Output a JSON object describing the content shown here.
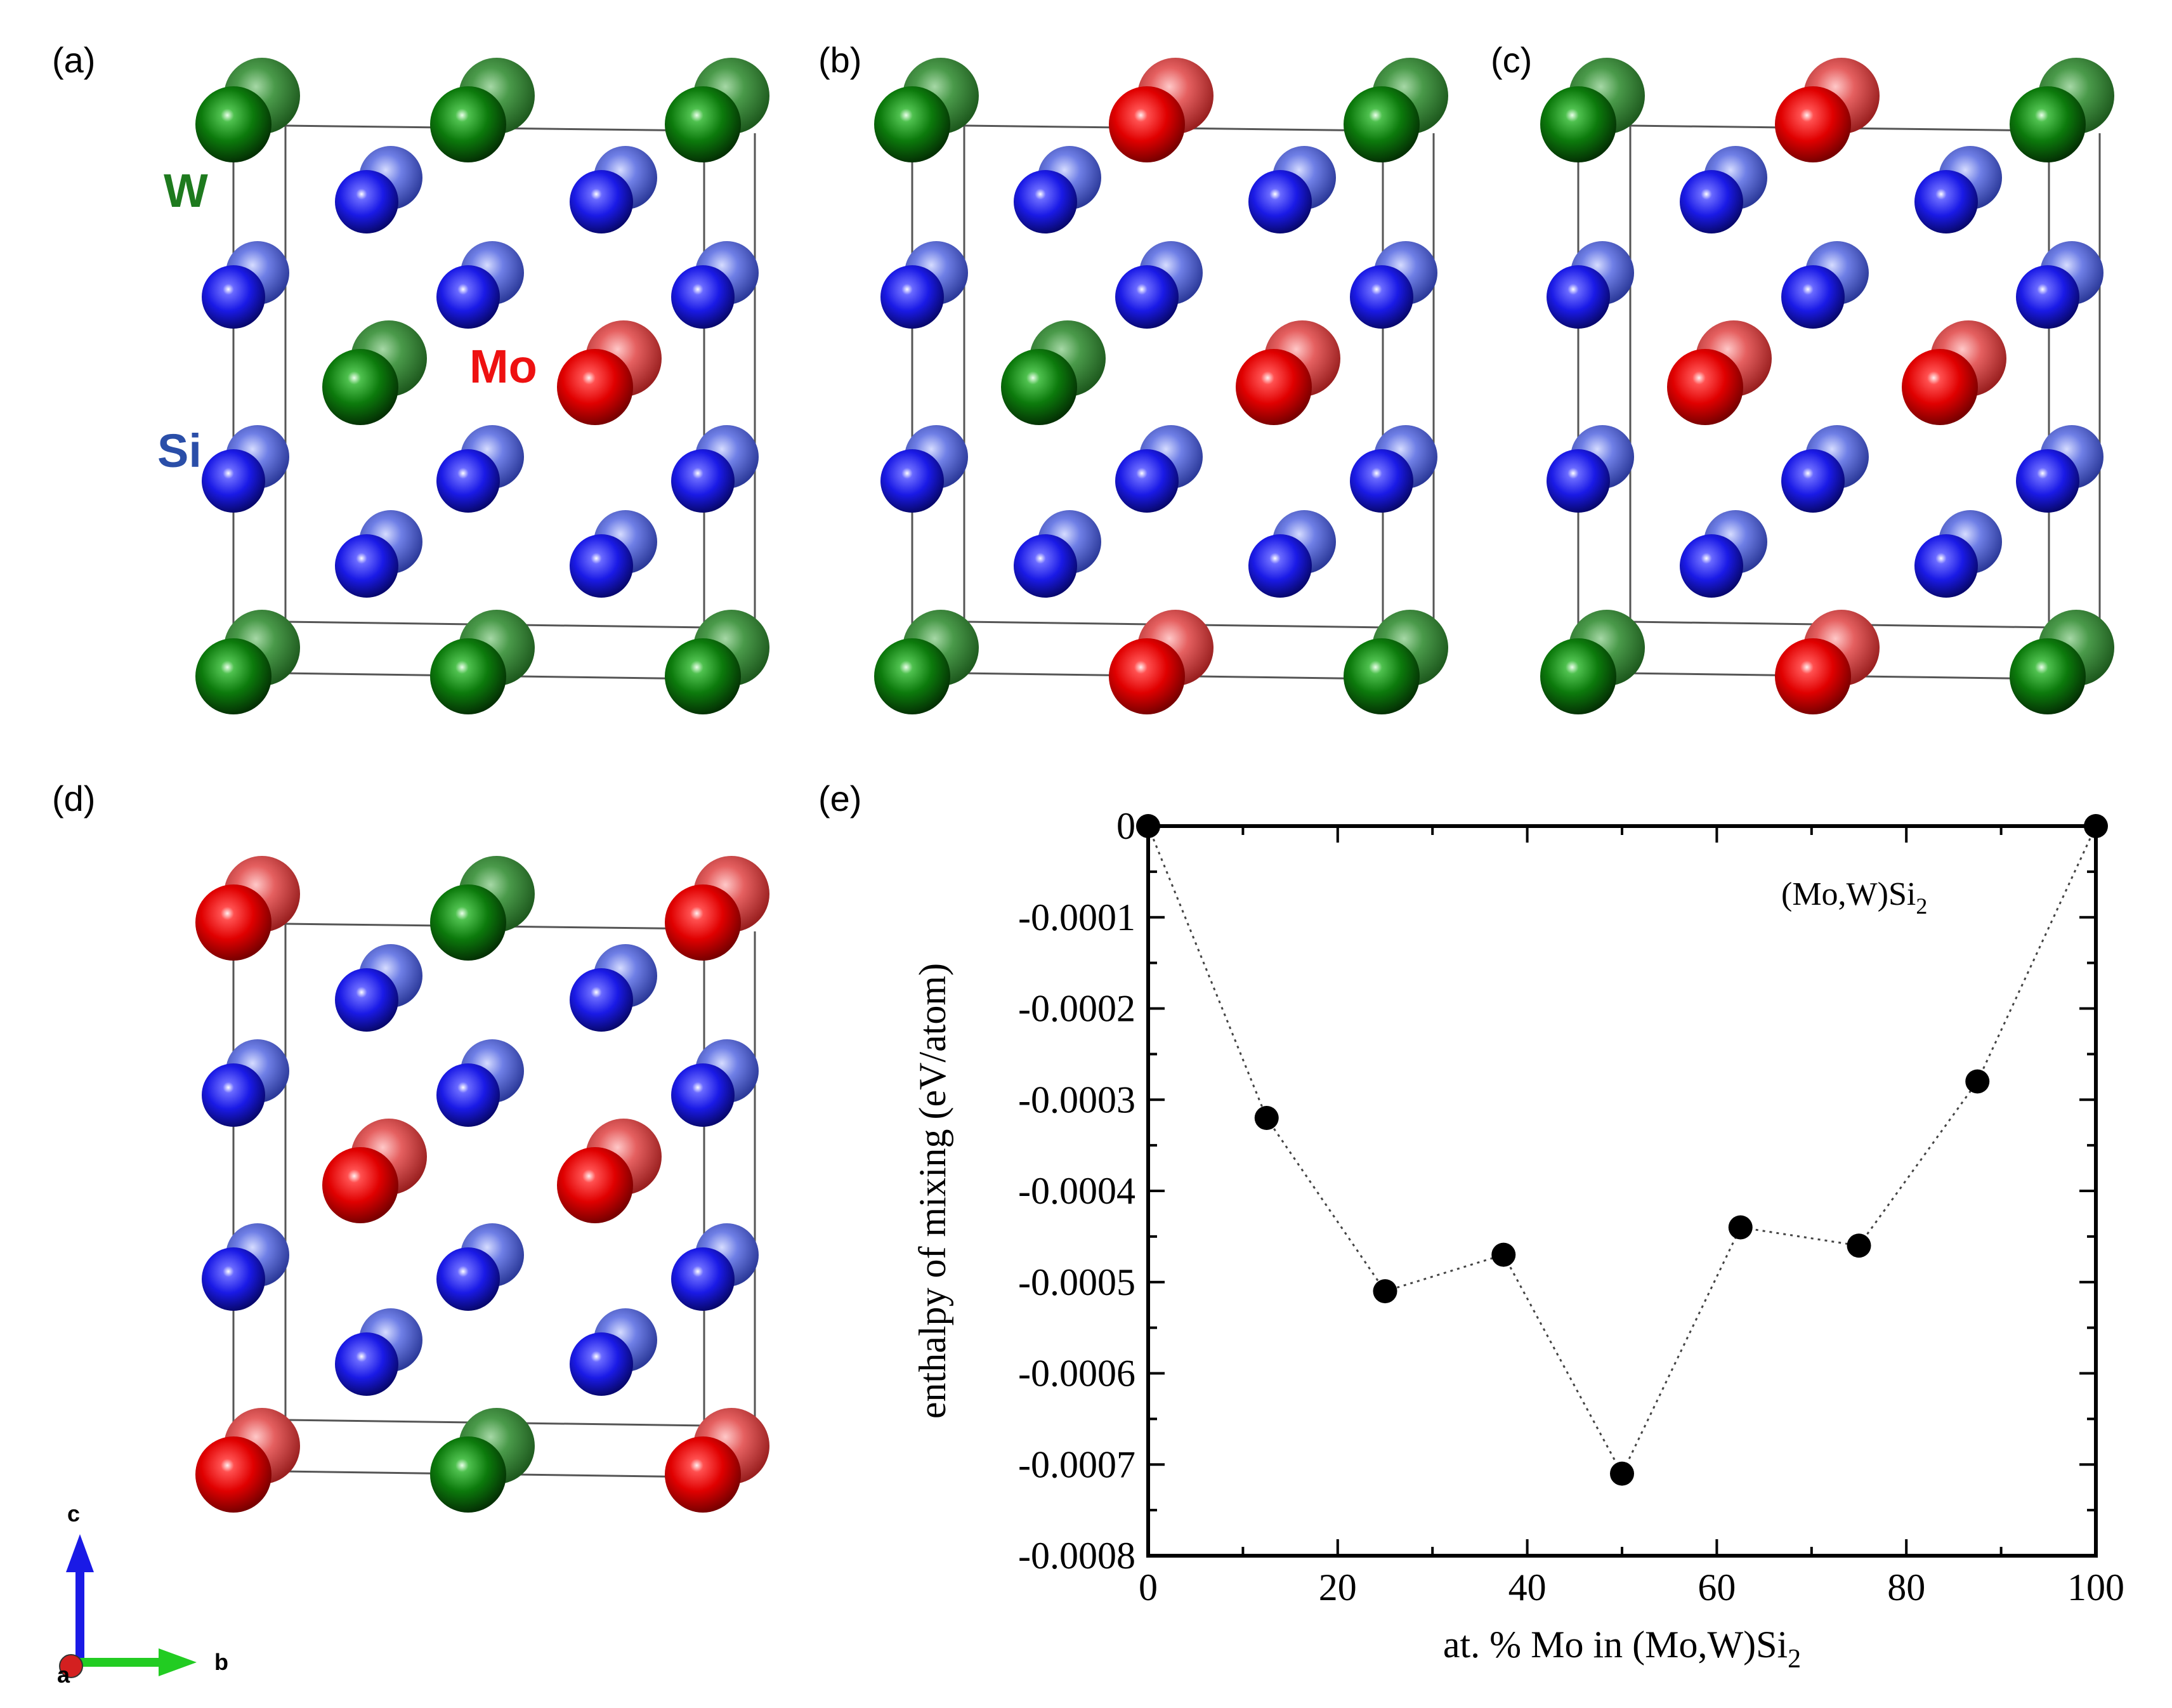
{
  "panels": {
    "a": "(a)",
    "b": "(b)",
    "c": "(c)",
    "d": "(d)",
    "e": "(e)"
  },
  "element_labels": {
    "W": "W",
    "Mo": "Mo",
    "Si": "Si"
  },
  "axes_triad": {
    "c": "c",
    "b": "b",
    "a": "a"
  },
  "structures": {
    "a": {
      "corners": [
        "W",
        "W",
        "W",
        "W",
        "W",
        "W"
      ],
      "centers": [
        "W",
        "Mo"
      ]
    },
    "b": {
      "corners": [
        "W",
        "Mo",
        "W",
        "W",
        "Mo",
        "W"
      ],
      "centers": [
        "W",
        "Mo"
      ]
    },
    "c": {
      "corners": [
        "W",
        "Mo",
        "W",
        "W",
        "Mo",
        "W"
      ],
      "centers": [
        "Mo",
        "Mo"
      ]
    },
    "d": {
      "corners": [
        "Mo",
        "W",
        "Mo",
        "Mo",
        "W",
        "Mo"
      ],
      "centers": [
        "Mo",
        "Mo"
      ]
    }
  },
  "colors": {
    "W": "#0c7a0c",
    "Mo": "#e00000",
    "Si": "#1a1ae6"
  },
  "chart_data": {
    "type": "scatter",
    "title": "(Mo,W)Si2",
    "annotation": "(Mo,W)Si",
    "annotation_sub": "2",
    "xlabel": "at. % Mo in (Mo,W)Si",
    "xlabel_sub": "2",
    "ylabel": "enthalpy of mixing (eV/atom)",
    "xlim": [
      0,
      100
    ],
    "ylim": [
      -0.0008,
      0
    ],
    "x_ticks": [
      "0",
      "20",
      "40",
      "60",
      "80",
      "100"
    ],
    "y_ticks": [
      "0",
      "-0.0001",
      "-0.0002",
      "-0.0003",
      "-0.0004",
      "-0.0005",
      "-0.0006",
      "-0.0007",
      "-0.0008"
    ],
    "x": [
      0,
      12.5,
      25,
      37.5,
      50,
      62.5,
      75,
      87.5,
      100
    ],
    "y": [
      0,
      -0.00032,
      -0.00051,
      -0.00047,
      -0.00071,
      -0.00044,
      -0.00046,
      -0.00028,
      0
    ],
    "line_style": "dotted"
  }
}
